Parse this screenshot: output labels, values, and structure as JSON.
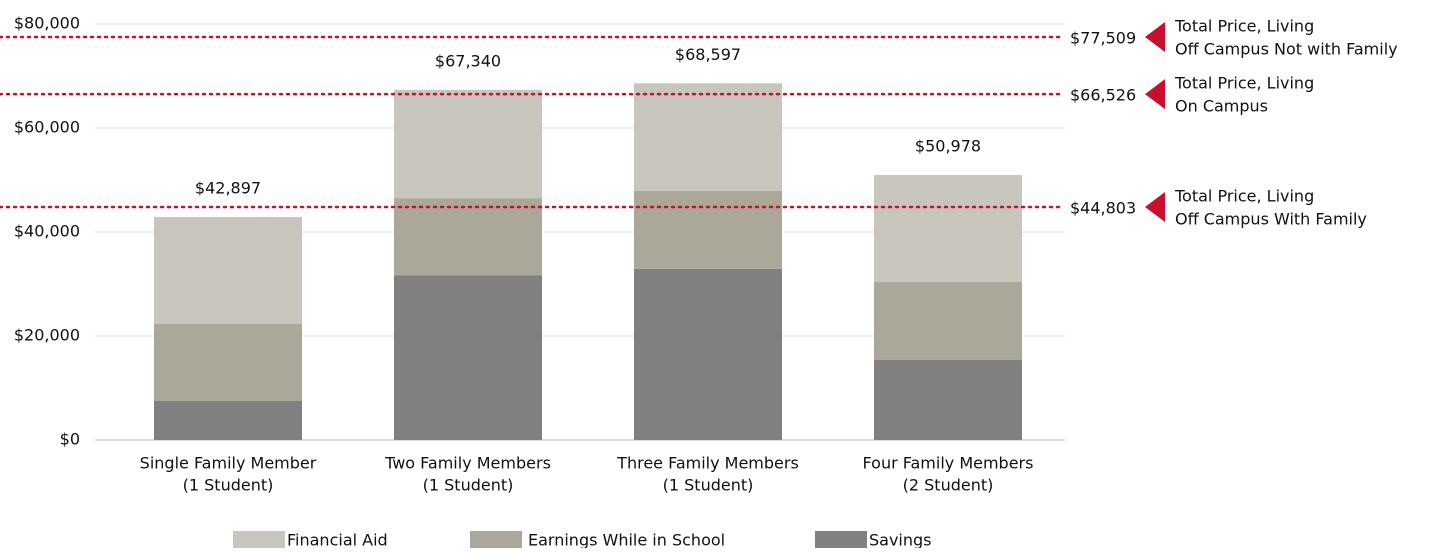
{
  "chart_data": {
    "type": "stacked_bar",
    "categories": [
      [
        "Single Family Member",
        "(1 Student)"
      ],
      [
        "Two Family Members",
        "(1 Student)"
      ],
      [
        "Three Family Members",
        "(1 Student)"
      ],
      [
        "Four Family Members",
        "(2 Student)"
      ]
    ],
    "series": [
      {
        "name": "Savings",
        "color": "#808080",
        "values": [
          7500,
          31700,
          32900,
          15400
        ]
      },
      {
        "name": "Earnings While in School",
        "color": "#aba799",
        "values": [
          14800,
          14800,
          15000,
          15000
        ]
      },
      {
        "name": "Financial Aid",
        "color": "#c8c5bd",
        "values": [
          20597,
          20840,
          20697,
          20578
        ]
      }
    ],
    "legend_order": [
      "Financial Aid",
      "Earnings While in School",
      "Savings"
    ],
    "totals": [
      42897,
      67340,
      68597,
      50978
    ],
    "total_labels": [
      "$42,897",
      "$67,340",
      "$68,597",
      "$50,978"
    ],
    "ylim": [
      0,
      80000
    ],
    "yticks": [
      {
        "value": 0,
        "label": "$0"
      },
      {
        "value": 20000,
        "label": "$20,000"
      },
      {
        "value": 40000,
        "label": "$40,000"
      },
      {
        "value": 60000,
        "label": "$60,000"
      },
      {
        "value": 80000,
        "label": "$80,000"
      }
    ],
    "grid": true,
    "reference_lines": [
      {
        "value": 77509,
        "label": "$77,509",
        "text": [
          "Total Price, Living",
          "Off Campus Not with Family"
        ],
        "color": "#c8102e"
      },
      {
        "value": 66526,
        "label": "$66,526",
        "text": [
          "Total Price, Living",
          "On Campus"
        ],
        "color": "#c8102e"
      },
      {
        "value": 44803,
        "label": "$44,803",
        "text": [
          "Total Price, Living",
          "Off Campus With Family"
        ],
        "color": "#c8102e"
      }
    ]
  }
}
